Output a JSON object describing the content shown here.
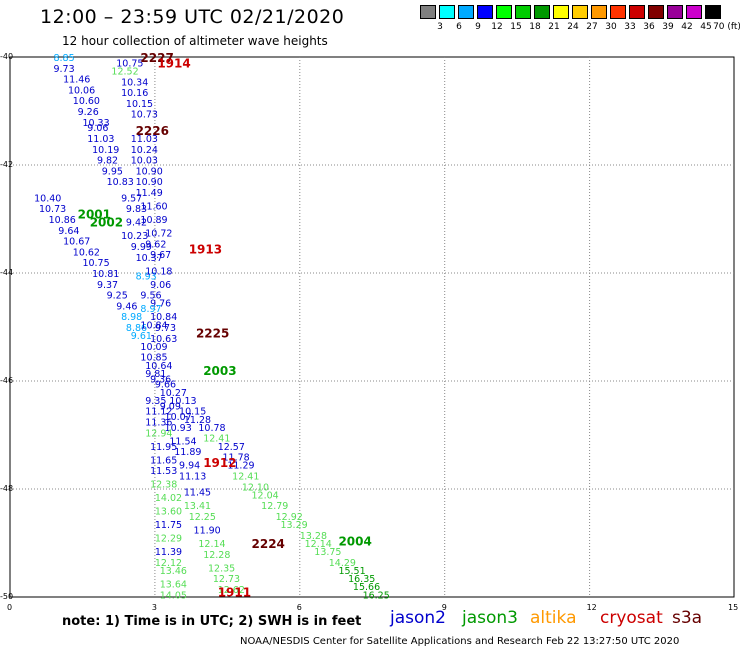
{
  "header": {
    "title": "12:00 – 23:59 UTC 02/21/2020",
    "subtitle": "12 hour collection of altimeter wave heights"
  },
  "legend": {
    "labels": [
      "3",
      "6",
      "9",
      "12",
      "15",
      "18",
      "21",
      "24",
      "27",
      "30",
      "33",
      "36",
      "39",
      "42",
      "45",
      "70 (ft)"
    ],
    "colors": [
      "#808080",
      "#00ffff",
      "#00aaff",
      "#0000ff",
      "#00ff00",
      "#00cc00",
      "#009900",
      "#ffff00",
      "#ffcc00",
      "#ff9900",
      "#ff3300",
      "#cc0000",
      "#800000",
      "#990099",
      "#cc00cc",
      "#000000"
    ]
  },
  "axes": {
    "lat_labels": [
      "-40",
      "-42",
      "-44",
      "-46",
      "-48",
      "-50"
    ],
    "lon_labels": [
      "0",
      "3",
      "6",
      "9",
      "12",
      "15"
    ]
  },
  "note": "note: 1) Time is in UTC; 2) SWH is in feet",
  "satellites": [
    {
      "name": "jason2",
      "color": "#0000cc"
    },
    {
      "name": "jason3",
      "color": "#009900"
    },
    {
      "name": "altika",
      "color": "#ff9900"
    },
    {
      "name": "cryosat",
      "color": "#cc0000"
    },
    {
      "name": "s3a",
      "color": "#660000"
    }
  ],
  "footer": "NOAA/NESDIS Center for Satellite Applications and Research    Feb 22 13:27:50 UTC 2020",
  "pass_labels": [
    {
      "text": "2227",
      "lon": 2.7,
      "lat": -40.0,
      "color": "#660000"
    },
    {
      "text": "1914",
      "lon": 3.05,
      "lat": -40.1,
      "color": "#cc0000"
    },
    {
      "text": "2226",
      "lon": 2.6,
      "lat": -41.35,
      "color": "#660000"
    },
    {
      "text": "2001",
      "lon": 1.4,
      "lat": -42.9,
      "color": "#009900"
    },
    {
      "text": "2002",
      "lon": 1.65,
      "lat": -43.05,
      "color": "#009900"
    },
    {
      "text": "1913",
      "lon": 3.7,
      "lat": -43.55,
      "color": "#cc0000"
    },
    {
      "text": "2225",
      "lon": 3.85,
      "lat": -45.1,
      "color": "#660000"
    },
    {
      "text": "2003",
      "lon": 4.0,
      "lat": -45.8,
      "color": "#009900"
    },
    {
      "text": "1912",
      "lon": 4.0,
      "lat": -47.5,
      "color": "#cc0000"
    },
    {
      "text": "2224",
      "lon": 5.0,
      "lat": -49.0,
      "color": "#660000"
    },
    {
      "text": "2004",
      "lon": 6.8,
      "lat": -48.95,
      "color": "#009900"
    },
    {
      "text": "1911",
      "lon": 4.3,
      "lat": -49.9,
      "color": "#cc0000"
    }
  ],
  "measurements": [
    {
      "v": "8.85",
      "lon": 0.9,
      "lat": -40.0,
      "c": "#00aaff"
    },
    {
      "v": "10.75",
      "lon": 2.2,
      "lat": -40.1,
      "c": "#0000cc"
    },
    {
      "v": "9.73",
      "lon": 0.9,
      "lat": -40.2,
      "c": "#0000cc"
    },
    {
      "v": "12.52",
      "lon": 2.1,
      "lat": -40.25,
      "c": "#55dd55"
    },
    {
      "v": "11.46",
      "lon": 1.1,
      "lat": -40.4,
      "c": "#0000cc"
    },
    {
      "v": "10.34",
      "lon": 2.3,
      "lat": -40.45,
      "c": "#0000cc"
    },
    {
      "v": "10.06",
      "lon": 1.2,
      "lat": -40.6,
      "c": "#0000cc"
    },
    {
      "v": "10.16",
      "lon": 2.3,
      "lat": -40.65,
      "c": "#0000cc"
    },
    {
      "v": "10.60",
      "lon": 1.3,
      "lat": -40.8,
      "c": "#0000cc"
    },
    {
      "v": "10.15",
      "lon": 2.4,
      "lat": -40.85,
      "c": "#0000cc"
    },
    {
      "v": "9.26",
      "lon": 1.4,
      "lat": -41.0,
      "c": "#0000cc"
    },
    {
      "v": "10.73",
      "lon": 2.5,
      "lat": -41.05,
      "c": "#0000cc"
    },
    {
      "v": "10.33",
      "lon": 1.5,
      "lat": -41.2,
      "c": "#0000cc"
    },
    {
      "v": "9.06",
      "lon": 1.6,
      "lat": -41.3,
      "c": "#0000cc"
    },
    {
      "v": "11.03",
      "lon": 1.6,
      "lat": -41.5,
      "c": "#0000cc"
    },
    {
      "v": "11.03",
      "lon": 2.5,
      "lat": -41.5,
      "c": "#0000cc"
    },
    {
      "v": "10.19",
      "lon": 1.7,
      "lat": -41.7,
      "c": "#0000cc"
    },
    {
      "v": "10.24",
      "lon": 2.5,
      "lat": -41.7,
      "c": "#0000cc"
    },
    {
      "v": "9.82",
      "lon": 1.8,
      "lat": -41.9,
      "c": "#0000cc"
    },
    {
      "v": "10.03",
      "lon": 2.5,
      "lat": -41.9,
      "c": "#0000cc"
    },
    {
      "v": "9.95",
      "lon": 1.9,
      "lat": -42.1,
      "c": "#0000cc"
    },
    {
      "v": "10.90",
      "lon": 2.6,
      "lat": -42.1,
      "c": "#0000cc"
    },
    {
      "v": "10.83",
      "lon": 2.0,
      "lat": -42.3,
      "c": "#0000cc"
    },
    {
      "v": "10.90",
      "lon": 2.6,
      "lat": -42.3,
      "c": "#0000cc"
    },
    {
      "v": "11.49",
      "lon": 2.6,
      "lat": -42.5,
      "c": "#0000cc"
    },
    {
      "v": "10.40",
      "lon": 0.5,
      "lat": -42.6,
      "c": "#0000cc"
    },
    {
      "v": "9.57",
      "lon": 2.3,
      "lat": -42.6,
      "c": "#0000cc"
    },
    {
      "v": "10.73",
      "lon": 0.6,
      "lat": -42.8,
      "c": "#0000cc"
    },
    {
      "v": "9.83",
      "lon": 2.4,
      "lat": -42.8,
      "c": "#0000cc"
    },
    {
      "v": "11.60",
      "lon": 2.7,
      "lat": -42.75,
      "c": "#0000cc"
    },
    {
      "v": "10.86",
      "lon": 0.8,
      "lat": -43.0,
      "c": "#0000cc"
    },
    {
      "v": "10.89",
      "lon": 2.7,
      "lat": -43.0,
      "c": "#0000cc"
    },
    {
      "v": "9.42",
      "lon": 2.4,
      "lat": -43.05,
      "c": "#0000cc"
    },
    {
      "v": "9.64",
      "lon": 1.0,
      "lat": -43.2,
      "c": "#0000cc"
    },
    {
      "v": "10.23",
      "lon": 2.3,
      "lat": -43.3,
      "c": "#0000cc"
    },
    {
      "v": "10.72",
      "lon": 2.8,
      "lat": -43.25,
      "c": "#0000cc"
    },
    {
      "v": "10.67",
      "lon": 1.1,
      "lat": -43.4,
      "c": "#0000cc"
    },
    {
      "v": "9.99",
      "lon": 2.5,
      "lat": -43.5,
      "c": "#0000cc"
    },
    {
      "v": "9.62",
      "lon": 2.8,
      "lat": -43.45,
      "c": "#0000cc"
    },
    {
      "v": "10.62",
      "lon": 1.3,
      "lat": -43.6,
      "c": "#0000cc"
    },
    {
      "v": "10.37",
      "lon": 2.6,
      "lat": -43.7,
      "c": "#0000cc"
    },
    {
      "v": "9.67",
      "lon": 2.9,
      "lat": -43.65,
      "c": "#0000cc"
    },
    {
      "v": "10.75",
      "lon": 1.5,
      "lat": -43.8,
      "c": "#0000cc"
    },
    {
      "v": "10.81",
      "lon": 1.7,
      "lat": -44.0,
      "c": "#0000cc"
    },
    {
      "v": "8.93",
      "lon": 2.6,
      "lat": -44.05,
      "c": "#00aaff"
    },
    {
      "v": "10.18",
      "lon": 2.8,
      "lat": -43.95,
      "c": "#0000cc"
    },
    {
      "v": "9.37",
      "lon": 1.8,
      "lat": -44.2,
      "c": "#0000cc"
    },
    {
      "v": "9.06",
      "lon": 2.9,
      "lat": -44.2,
      "c": "#0000cc"
    },
    {
      "v": "9.25",
      "lon": 2.0,
      "lat": -44.4,
      "c": "#0000cc"
    },
    {
      "v": "9.56",
      "lon": 2.7,
      "lat": -44.4,
      "c": "#0000cc"
    },
    {
      "v": "9.46",
      "lon": 2.2,
      "lat": -44.6,
      "c": "#0000cc"
    },
    {
      "v": "9.76",
      "lon": 2.9,
      "lat": -44.55,
      "c": "#0000cc"
    },
    {
      "v": "8.97",
      "lon": 2.7,
      "lat": -44.65,
      "c": "#00aaff"
    },
    {
      "v": "8.98",
      "lon": 2.3,
      "lat": -44.8,
      "c": "#00aaff"
    },
    {
      "v": "10.84",
      "lon": 2.9,
      "lat": -44.8,
      "c": "#0000cc"
    },
    {
      "v": "8.86",
      "lon": 2.4,
      "lat": -45.0,
      "c": "#00aaff"
    },
    {
      "v": "10.84",
      "lon": 2.7,
      "lat": -44.95,
      "c": "#0000cc"
    },
    {
      "v": "9.73",
      "lon": 3.0,
      "lat": -45.0,
      "c": "#0000cc"
    },
    {
      "v": "9.61",
      "lon": 2.5,
      "lat": -45.15,
      "c": "#00aaff"
    },
    {
      "v": "10.63",
      "lon": 2.9,
      "lat": -45.2,
      "c": "#0000cc"
    },
    {
      "v": "10.09",
      "lon": 2.7,
      "lat": -45.35,
      "c": "#0000cc"
    },
    {
      "v": "10.85",
      "lon": 2.7,
      "lat": -45.55,
      "c": "#0000cc"
    },
    {
      "v": "10.64",
      "lon": 2.8,
      "lat": -45.7,
      "c": "#0000cc"
    },
    {
      "v": "9.81",
      "lon": 2.8,
      "lat": -45.85,
      "c": "#0000cc"
    },
    {
      "v": "9.36",
      "lon": 2.9,
      "lat": -45.95,
      "c": "#0000cc"
    },
    {
      "v": "9.66",
      "lon": 3.0,
      "lat": -46.05,
      "c": "#0000cc"
    },
    {
      "v": "10.27",
      "lon": 3.1,
      "lat": -46.2,
      "c": "#0000cc"
    },
    {
      "v": "9.35",
      "lon": 2.8,
      "lat": -46.35,
      "c": "#0000cc"
    },
    {
      "v": "10.13",
      "lon": 3.3,
      "lat": -46.35,
      "c": "#0000cc"
    },
    {
      "v": "9.09",
      "lon": 3.1,
      "lat": -46.45,
      "c": "#0000cc"
    },
    {
      "v": "11.12",
      "lon": 2.8,
      "lat": -46.55,
      "c": "#0000cc"
    },
    {
      "v": "10.15",
      "lon": 3.5,
      "lat": -46.55,
      "c": "#0000cc"
    },
    {
      "v": "10.07",
      "lon": 3.2,
      "lat": -46.65,
      "c": "#0000cc"
    },
    {
      "v": "11.36",
      "lon": 2.8,
      "lat": -46.75,
      "c": "#0000cc"
    },
    {
      "v": "11.28",
      "lon": 3.6,
      "lat": -46.7,
      "c": "#0000cc"
    },
    {
      "v": "10.93",
      "lon": 3.2,
      "lat": -46.85,
      "c": "#0000cc"
    },
    {
      "v": "10.78",
      "lon": 3.9,
      "lat": -46.85,
      "c": "#0000cc"
    },
    {
      "v": "12.94",
      "lon": 2.8,
      "lat": -46.95,
      "c": "#55dd55"
    },
    {
      "v": "12.41",
      "lon": 4.0,
      "lat": -47.05,
      "c": "#55dd55"
    },
    {
      "v": "11.54",
      "lon": 3.3,
      "lat": -47.1,
      "c": "#0000cc"
    },
    {
      "v": "11.95",
      "lon": 2.9,
      "lat": -47.2,
      "c": "#0000cc"
    },
    {
      "v": "12.57",
      "lon": 4.3,
      "lat": -47.2,
      "c": "#0000cc"
    },
    {
      "v": "11.89",
      "lon": 3.4,
      "lat": -47.3,
      "c": "#0000cc"
    },
    {
      "v": "11.78",
      "lon": 4.4,
      "lat": -47.4,
      "c": "#0000cc"
    },
    {
      "v": "11.65",
      "lon": 2.9,
      "lat": -47.45,
      "c": "#0000cc"
    },
    {
      "v": "9.94",
      "lon": 3.5,
      "lat": -47.55,
      "c": "#0000cc"
    },
    {
      "v": "11.29",
      "lon": 4.5,
      "lat": -47.55,
      "c": "#0000cc"
    },
    {
      "v": "11.53",
      "lon": 2.9,
      "lat": -47.65,
      "c": "#0000cc"
    },
    {
      "v": "12.41",
      "lon": 4.6,
      "lat": -47.75,
      "c": "#55dd55"
    },
    {
      "v": "11.13",
      "lon": 3.5,
      "lat": -47.75,
      "c": "#0000cc"
    },
    {
      "v": "12.38",
      "lon": 2.9,
      "lat": -47.9,
      "c": "#55dd55"
    },
    {
      "v": "12.10",
      "lon": 4.8,
      "lat": -47.95,
      "c": "#55dd55"
    },
    {
      "v": "11.45",
      "lon": 3.6,
      "lat": -48.05,
      "c": "#0000cc"
    },
    {
      "v": "14.02",
      "lon": 3.0,
      "lat": -48.15,
      "c": "#55dd55"
    },
    {
      "v": "12.04",
      "lon": 5.0,
      "lat": -48.1,
      "c": "#55dd55"
    },
    {
      "v": "13.41",
      "lon": 3.6,
      "lat": -48.3,
      "c": "#55dd55"
    },
    {
      "v": "12.79",
      "lon": 5.2,
      "lat": -48.3,
      "c": "#55dd55"
    },
    {
      "v": "13.60",
      "lon": 3.0,
      "lat": -48.4,
      "c": "#55dd55"
    },
    {
      "v": "12.25",
      "lon": 3.7,
      "lat": -48.5,
      "c": "#55dd55"
    },
    {
      "v": "12.92",
      "lon": 5.5,
      "lat": -48.5,
      "c": "#55dd55"
    },
    {
      "v": "11.75",
      "lon": 3.0,
      "lat": -48.65,
      "c": "#0000cc"
    },
    {
      "v": "13.29",
      "lon": 5.6,
      "lat": -48.65,
      "c": "#55dd55"
    },
    {
      "v": "11.90",
      "lon": 3.8,
      "lat": -48.75,
      "c": "#0000cc"
    },
    {
      "v": "12.29",
      "lon": 3.0,
      "lat": -48.9,
      "c": "#55dd55"
    },
    {
      "v": "13.28",
      "lon": 6.0,
      "lat": -48.85,
      "c": "#55dd55"
    },
    {
      "v": "12.14",
      "lon": 3.9,
      "lat": -49.0,
      "c": "#55dd55"
    },
    {
      "v": "12.14",
      "lon": 6.1,
      "lat": -49.0,
      "c": "#55dd55"
    },
    {
      "v": "11.39",
      "lon": 3.0,
      "lat": -49.15,
      "c": "#0000cc"
    },
    {
      "v": "13.75",
      "lon": 6.3,
      "lat": -49.15,
      "c": "#55dd55"
    },
    {
      "v": "12.28",
      "lon": 4.0,
      "lat": -49.2,
      "c": "#55dd55"
    },
    {
      "v": "12.12",
      "lon": 3.0,
      "lat": -49.35,
      "c": "#55dd55"
    },
    {
      "v": "14.29",
      "lon": 6.6,
      "lat": -49.35,
      "c": "#55dd55"
    },
    {
      "v": "12.35",
      "lon": 4.1,
      "lat": -49.45,
      "c": "#55dd55"
    },
    {
      "v": "13.46",
      "lon": 3.1,
      "lat": -49.5,
      "c": "#55dd55"
    },
    {
      "v": "15.51",
      "lon": 6.8,
      "lat": -49.5,
      "c": "#009900"
    },
    {
      "v": "12.73",
      "lon": 4.2,
      "lat": -49.65,
      "c": "#55dd55"
    },
    {
      "v": "16.35",
      "lon": 7.0,
      "lat": -49.65,
      "c": "#009900"
    },
    {
      "v": "13.64",
      "lon": 3.1,
      "lat": -49.75,
      "c": "#55dd55"
    },
    {
      "v": "15.66",
      "lon": 7.1,
      "lat": -49.8,
      "c": "#009900"
    },
    {
      "v": "12.62",
      "lon": 4.3,
      "lat": -49.85,
      "c": "#55dd55"
    },
    {
      "v": "14.05",
      "lon": 3.1,
      "lat": -49.95,
      "c": "#55dd55"
    },
    {
      "v": "16.25",
      "lon": 7.3,
      "lat": -49.95,
      "c": "#009900"
    }
  ]
}
